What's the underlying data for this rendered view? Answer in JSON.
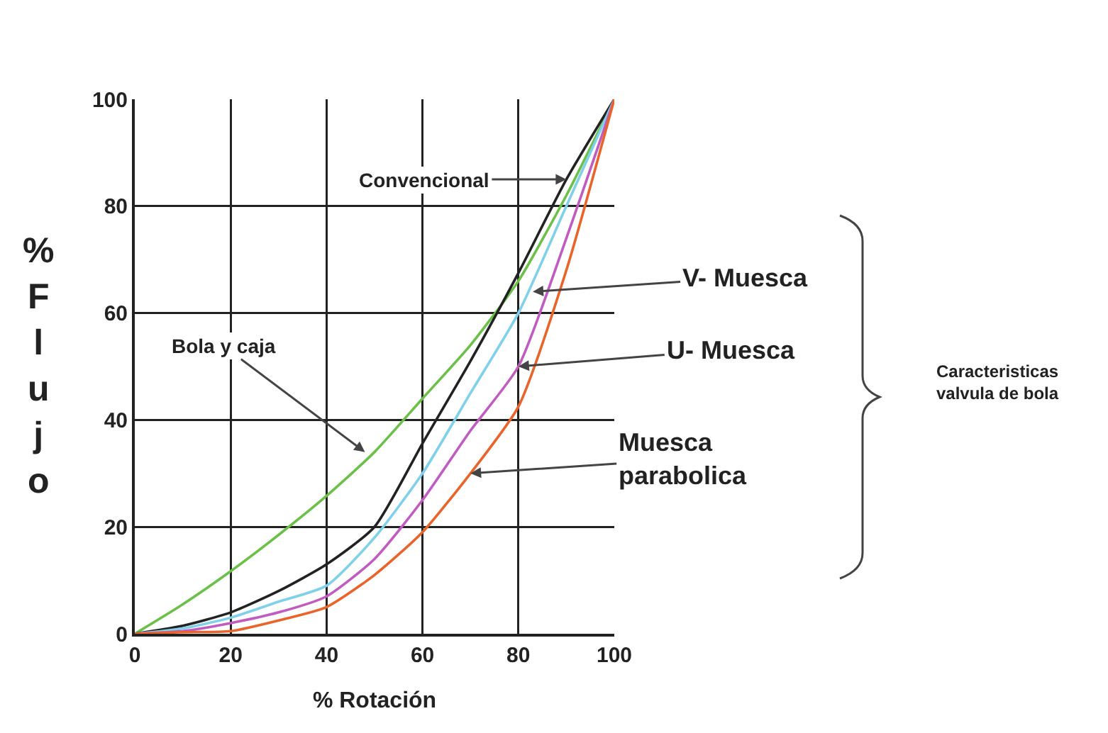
{
  "chart_data": {
    "type": "line",
    "xlabel": "% Rotación",
    "ylabel": "% Flujo",
    "x": [
      0,
      10,
      20,
      30,
      40,
      50,
      60,
      70,
      80,
      90,
      100
    ],
    "series": [
      {
        "color": "#6cc04a",
        "values": [
          0,
          5.5,
          11.7,
          18.5,
          25.8,
          34,
          44,
          54,
          66,
          82,
          100
        ]
      },
      {
        "color": "#222222",
        "values": [
          0,
          1.5,
          4,
          8,
          13,
          20,
          35.6,
          51,
          67.5,
          85,
          100
        ]
      },
      {
        "color": "#7fd0e8",
        "values": [
          0,
          1,
          3,
          6,
          9,
          18,
          30,
          45,
          60,
          80,
          100
        ]
      },
      {
        "color": "#c05cc0",
        "values": [
          0,
          0.5,
          2,
          4,
          7,
          14,
          25,
          38,
          50,
          74,
          100
        ]
      },
      {
        "color": "#e8642a",
        "values": [
          0,
          0.3,
          0.5,
          2.5,
          5,
          11,
          19,
          30,
          42.5,
          68,
          100
        ]
      }
    ],
    "xlim": [
      0,
      100
    ],
    "ylim": [
      0,
      100
    ],
    "xticks": [
      0,
      20,
      40,
      60,
      80,
      100
    ],
    "yticks": [
      0,
      20,
      40,
      60,
      80,
      100
    ],
    "grid": true,
    "marker": "none",
    "line_style": "solid",
    "annotations": [
      {
        "text": "Convencional",
        "x": 90,
        "y": 85
      },
      {
        "text": "V- Muesca",
        "x": 83,
        "y": 64
      },
      {
        "text": "U- Muesca",
        "x": 80,
        "y": 50
      },
      {
        "text": "Muesca\nparabolica",
        "x": 70,
        "y": 30
      },
      {
        "text": "Bola y caja",
        "x": 48,
        "y": 34
      },
      "Caracteristicas\nvalvula de bola"
    ]
  }
}
